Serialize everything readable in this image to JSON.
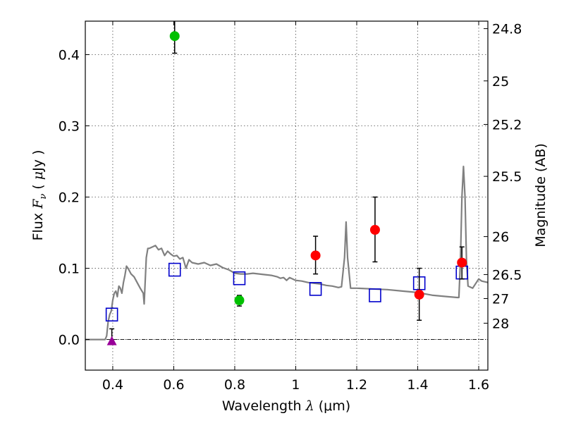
{
  "chart_data": {
    "type": "scatter",
    "title": "",
    "xlabel": "Wavelength  λ (μm)",
    "ylabel": "Flux  Fν  ( μJy )",
    "ylabel_parts": {
      "prefix": "Flux  ",
      "sym": "F",
      "sub": "ν",
      "mid": "  ( ",
      "mu": "μ",
      "suffix": "Jy )"
    },
    "xlabel_parts": {
      "prefix": "Wavelength  ",
      "sym": "λ",
      "suffix": " (μm)"
    },
    "y2label": "Magnitude (AB)",
    "xlim": [
      0.31,
      1.63
    ],
    "ylim": [
      -0.043,
      0.447
    ],
    "grid": true,
    "x_ticks": [
      {
        "value": 0.4,
        "label": "0.4"
      },
      {
        "value": 0.6,
        "label": "0.6"
      },
      {
        "value": 0.8,
        "label": "0.8"
      },
      {
        "value": 1.0,
        "label": "1"
      },
      {
        "value": 1.2,
        "label": "1.2"
      },
      {
        "value": 1.4,
        "label": "1.4"
      },
      {
        "value": 1.6,
        "label": "1.6"
      }
    ],
    "y_ticks": [
      {
        "value": 0.0,
        "label": "0.0"
      },
      {
        "value": 0.1,
        "label": "0.1"
      },
      {
        "value": 0.2,
        "label": "0.2"
      },
      {
        "value": 0.3,
        "label": "0.3"
      },
      {
        "value": 0.4,
        "label": "0.4"
      }
    ],
    "mag_ticks": [
      {
        "label": "24.8",
        "flux": 0.4365
      },
      {
        "label": "25",
        "flux": 0.3631
      },
      {
        "label": "25.2",
        "flux": 0.302
      },
      {
        "label": "25.5",
        "flux": 0.2291
      },
      {
        "label": "26",
        "flux": 0.1445
      },
      {
        "label": "26.5",
        "flux": 0.0912
      },
      {
        "label": "27",
        "flux": 0.0575
      },
      {
        "label": "28",
        "flux": 0.0229
      }
    ],
    "series": [
      {
        "name": "model SED",
        "kind": "line",
        "color": "#808080",
        "points": [
          [
            0.31,
            0.0
          ],
          [
            0.375,
            0.0
          ],
          [
            0.38,
            0.005
          ],
          [
            0.385,
            0.025
          ],
          [
            0.39,
            0.035
          ],
          [
            0.395,
            0.04
          ],
          [
            0.4,
            0.055
          ],
          [
            0.405,
            0.065
          ],
          [
            0.41,
            0.068
          ],
          [
            0.415,
            0.06
          ],
          [
            0.42,
            0.075
          ],
          [
            0.425,
            0.072
          ],
          [
            0.43,
            0.065
          ],
          [
            0.435,
            0.08
          ],
          [
            0.44,
            0.09
          ],
          [
            0.445,
            0.103
          ],
          [
            0.45,
            0.1
          ],
          [
            0.46,
            0.092
          ],
          [
            0.47,
            0.088
          ],
          [
            0.48,
            0.08
          ],
          [
            0.49,
            0.072
          ],
          [
            0.5,
            0.065
          ],
          [
            0.503,
            0.05
          ],
          [
            0.51,
            0.115
          ],
          [
            0.515,
            0.128
          ],
          [
            0.52,
            0.128
          ],
          [
            0.53,
            0.13
          ],
          [
            0.54,
            0.132
          ],
          [
            0.55,
            0.126
          ],
          [
            0.56,
            0.128
          ],
          [
            0.57,
            0.118
          ],
          [
            0.58,
            0.124
          ],
          [
            0.59,
            0.12
          ],
          [
            0.6,
            0.117
          ],
          [
            0.61,
            0.118
          ],
          [
            0.62,
            0.113
          ],
          [
            0.63,
            0.115
          ],
          [
            0.64,
            0.1
          ],
          [
            0.65,
            0.112
          ],
          [
            0.66,
            0.108
          ],
          [
            0.68,
            0.106
          ],
          [
            0.7,
            0.108
          ],
          [
            0.72,
            0.104
          ],
          [
            0.74,
            0.106
          ],
          [
            0.76,
            0.101
          ],
          [
            0.78,
            0.098
          ],
          [
            0.8,
            0.093
          ],
          [
            0.82,
            0.092
          ],
          [
            0.84,
            0.092
          ],
          [
            0.86,
            0.093
          ],
          [
            0.88,
            0.092
          ],
          [
            0.9,
            0.091
          ],
          [
            0.92,
            0.09
          ],
          [
            0.94,
            0.088
          ],
          [
            0.95,
            0.086
          ],
          [
            0.96,
            0.087
          ],
          [
            0.97,
            0.083
          ],
          [
            0.98,
            0.087
          ],
          [
            1.0,
            0.083
          ],
          [
            1.02,
            0.082
          ],
          [
            1.04,
            0.08
          ],
          [
            1.06,
            0.079
          ],
          [
            1.08,
            0.078
          ],
          [
            1.1,
            0.076
          ],
          [
            1.12,
            0.075
          ],
          [
            1.14,
            0.073
          ],
          [
            1.15,
            0.074
          ],
          [
            1.16,
            0.115
          ],
          [
            1.165,
            0.165
          ],
          [
            1.17,
            0.115
          ],
          [
            1.18,
            0.072
          ],
          [
            1.2,
            0.072
          ],
          [
            1.25,
            0.071
          ],
          [
            1.3,
            0.07
          ],
          [
            1.35,
            0.068
          ],
          [
            1.4,
            0.066
          ],
          [
            1.45,
            0.062
          ],
          [
            1.5,
            0.06
          ],
          [
            1.53,
            0.059
          ],
          [
            1.535,
            0.059
          ],
          [
            1.54,
            0.11
          ],
          [
            1.545,
            0.2
          ],
          [
            1.55,
            0.243
          ],
          [
            1.555,
            0.2
          ],
          [
            1.56,
            0.11
          ],
          [
            1.565,
            0.075
          ],
          [
            1.58,
            0.072
          ],
          [
            1.6,
            0.085
          ],
          [
            1.61,
            0.082
          ],
          [
            1.63,
            0.08
          ]
        ]
      },
      {
        "name": "model fluxes",
        "kind": "open-square",
        "color": "#0000cc",
        "points": [
          [
            0.397,
            0.035
          ],
          [
            0.603,
            0.098
          ],
          [
            0.815,
            0.086
          ],
          [
            1.065,
            0.071
          ],
          [
            1.26,
            0.062
          ],
          [
            1.405,
            0.079
          ],
          [
            1.545,
            0.094
          ]
        ]
      },
      {
        "name": "red detections",
        "kind": "filled-circle",
        "color": "#ff0000",
        "points": [
          {
            "x": 1.065,
            "y": 0.118,
            "lo": 0.092,
            "hi": 0.145
          },
          {
            "x": 1.26,
            "y": 0.154,
            "lo": 0.109,
            "hi": 0.2
          },
          {
            "x": 1.405,
            "y": 0.063,
            "lo": 0.027,
            "hi": 0.1
          },
          {
            "x": 1.545,
            "y": 0.108,
            "lo": 0.085,
            "hi": 0.13
          }
        ]
      },
      {
        "name": "green detections",
        "kind": "filled-circle",
        "color": "#00c000",
        "points": [
          {
            "x": 0.603,
            "y": 0.426,
            "lo": 0.402,
            "hi": 0.452
          },
          {
            "x": 0.815,
            "y": 0.055,
            "lo": 0.047,
            "hi": 0.062
          }
        ]
      },
      {
        "name": "magenta detection",
        "kind": "filled-triangle",
        "color": "#990099",
        "points": [
          {
            "x": 0.397,
            "y": -0.002,
            "lo": -0.002,
            "hi": 0.015
          }
        ]
      }
    ]
  }
}
